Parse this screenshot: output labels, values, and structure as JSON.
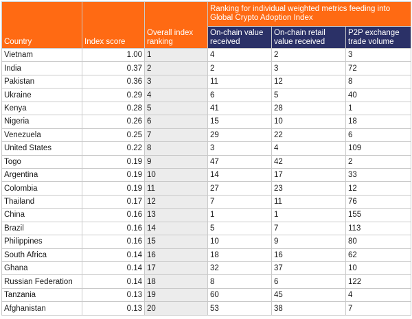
{
  "header": {
    "country": "Country",
    "index_score": "Index score",
    "overall_ranking": "Overall index ranking",
    "group_title": "Ranking for individual weighted metrics feeding into Global Crypto Adoption Index",
    "onchain_value": "On-chain value received",
    "onchain_retail": "On-chain retail value received",
    "p2p_volume": "P2P exchange trade volume"
  },
  "colors": {
    "orange": "#ff6a13",
    "navy": "#2b3167",
    "rank_bg": "#ececec"
  },
  "rows": [
    {
      "country": "Vietnam",
      "score": "1.00",
      "rank": "1",
      "onchain": "4",
      "retail": "2",
      "p2p": "3"
    },
    {
      "country": "India",
      "score": "0.37",
      "rank": "2",
      "onchain": "2",
      "retail": "3",
      "p2p": "72"
    },
    {
      "country": "Pakistan",
      "score": "0.36",
      "rank": "3",
      "onchain": "11",
      "retail": "12",
      "p2p": "8"
    },
    {
      "country": "Ukraine",
      "score": "0.29",
      "rank": "4",
      "onchain": "6",
      "retail": "5",
      "p2p": "40"
    },
    {
      "country": "Kenya",
      "score": "0.28",
      "rank": "5",
      "onchain": "41",
      "retail": "28",
      "p2p": "1"
    },
    {
      "country": "Nigeria",
      "score": "0.26",
      "rank": "6",
      "onchain": "15",
      "retail": "10",
      "p2p": "18"
    },
    {
      "country": "Venezuela",
      "score": "0.25",
      "rank": "7",
      "onchain": "29",
      "retail": "22",
      "p2p": "6"
    },
    {
      "country": "United States",
      "score": "0.22",
      "rank": "8",
      "onchain": "3",
      "retail": "4",
      "p2p": "109"
    },
    {
      "country": "Togo",
      "score": "0.19",
      "rank": "9",
      "onchain": "47",
      "retail": "42",
      "p2p": "2"
    },
    {
      "country": "Argentina",
      "score": "0.19",
      "rank": "10",
      "onchain": "14",
      "retail": "17",
      "p2p": "33"
    },
    {
      "country": "Colombia",
      "score": "0.19",
      "rank": "11",
      "onchain": "27",
      "retail": "23",
      "p2p": "12"
    },
    {
      "country": "Thailand",
      "score": "0.17",
      "rank": "12",
      "onchain": "7",
      "retail": "11",
      "p2p": "76"
    },
    {
      "country": "China",
      "score": "0.16",
      "rank": "13",
      "onchain": "1",
      "retail": "1",
      "p2p": "155"
    },
    {
      "country": "Brazil",
      "score": "0.16",
      "rank": "14",
      "onchain": "5",
      "retail": "7",
      "p2p": "113"
    },
    {
      "country": "Philippines",
      "score": "0.16",
      "rank": "15",
      "onchain": "10",
      "retail": "9",
      "p2p": "80"
    },
    {
      "country": "South Africa",
      "score": "0.14",
      "rank": "16",
      "onchain": "18",
      "retail": "16",
      "p2p": "62"
    },
    {
      "country": "Ghana",
      "score": "0.14",
      "rank": "17",
      "onchain": "32",
      "retail": "37",
      "p2p": "10"
    },
    {
      "country": "Russian Federation",
      "score": "0.14",
      "rank": "18",
      "onchain": "8",
      "retail": "6",
      "p2p": "122"
    },
    {
      "country": "Tanzania",
      "score": "0.13",
      "rank": "19",
      "onchain": "60",
      "retail": "45",
      "p2p": "4"
    },
    {
      "country": "Afghanistan",
      "score": "0.13",
      "rank": "20",
      "onchain": "53",
      "retail": "38",
      "p2p": "7"
    }
  ]
}
